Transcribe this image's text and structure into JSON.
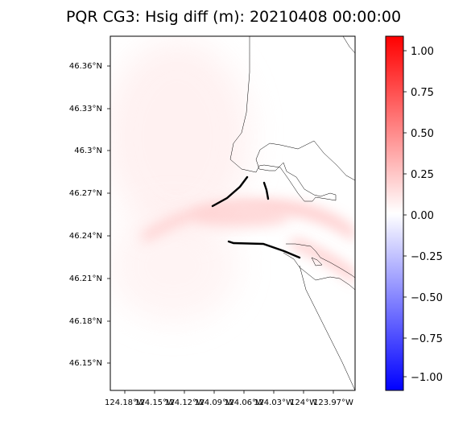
{
  "title": "PQR CG3: Hsig diff (m): 20210408 00:00:00",
  "map": {
    "lat_ticks": [
      "46.36°N",
      "46.33°N",
      "46.3°N",
      "46.27°N",
      "46.24°N",
      "46.21°N",
      "46.18°N",
      "46.15°N"
    ],
    "lon_ticks": [
      "124.18°W",
      "124.15°W",
      "124.12°W",
      "124.09°W",
      "124.06°W",
      "124.03°W",
      "124°W",
      "123.97°W"
    ]
  },
  "colorbar": {
    "ticks": [
      "1.00",
      "0.75",
      "0.50",
      "0.25",
      "0.00",
      "−0.25",
      "−0.50",
      "−0.75",
      "−1.00"
    ],
    "min": -1.08,
    "max": 1.08,
    "colors": {
      "max": "#ff0000",
      "mid": "#ffffff",
      "min": "#0000ff"
    }
  }
}
